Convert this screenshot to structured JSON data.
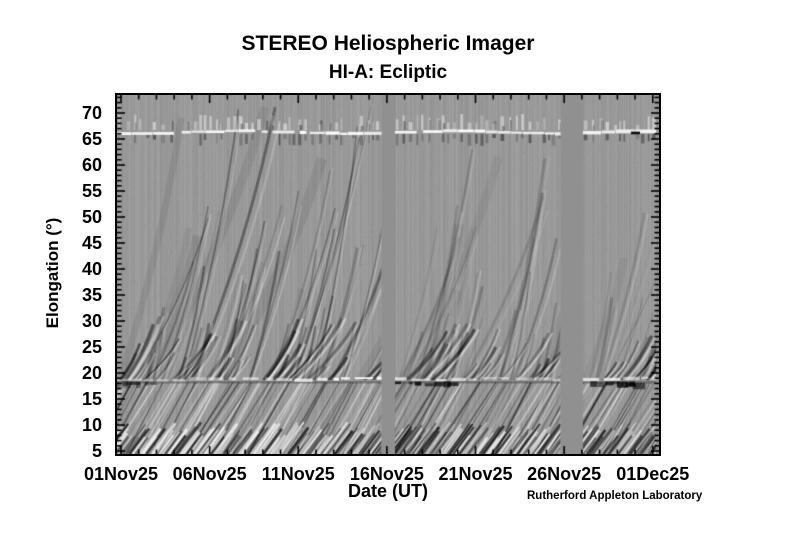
{
  "chart_data": {
    "type": "heatmap",
    "title": "STEREO Heliospheric Imager",
    "subtitle": "HI-A: Ecliptic",
    "xlabel": "Date (UT)",
    "ylabel": "Elongation (°)",
    "credit": "Rutherford Appleton Laboratory",
    "x_axis": {
      "major_ticks": [
        {
          "day": 0,
          "label": "01Nov25"
        },
        {
          "day": 5,
          "label": "06Nov25"
        },
        {
          "day": 10,
          "label": "11Nov25"
        },
        {
          "day": 15,
          "label": "16Nov25"
        },
        {
          "day": 20,
          "label": "21Nov25"
        },
        {
          "day": 25,
          "label": "26Nov25"
        },
        {
          "day": 30,
          "label": "01Dec25"
        }
      ],
      "minor_tick_interval_days": 1,
      "range_days": [
        -0.35,
        30.55
      ]
    },
    "y_axis": {
      "major_ticks": [
        5,
        10,
        15,
        20,
        25,
        30,
        35,
        40,
        45,
        50,
        55,
        60,
        65,
        70
      ],
      "minor_tick_interval_deg": 1,
      "range_deg": [
        4.4,
        73.5
      ]
    },
    "colormap": "grayscale",
    "legend": "none",
    "grid": false,
    "features": {
      "base_gray": "#999999",
      "gap_gray": "#909090",
      "frame_color": "#000000",
      "star_band_elongation_deg": 66.3,
      "hi1_hi2_boundary_elongation_deg": 18.6,
      "data_gap_intervals_days": [
        [
          14.7,
          15.45
        ],
        [
          24.8,
          26.05
        ],
        [
          30.2,
          30.55
        ]
      ],
      "description": "Time-elongation J-map: diagonal bright/dark streaks are outward-moving solar-wind transients rising from low to high elongation; dense fine streaks below ~18.6° (HI-1 camera), smoother broad streaks above (HI-2); bright wavy horizontal band near 66° is a stellar/planetary track with vertical star flecks; flat grey vertical columns are data gaps; dark blobs sit just under the boundary line after each gap."
    },
    "render_seed": 1234
  }
}
